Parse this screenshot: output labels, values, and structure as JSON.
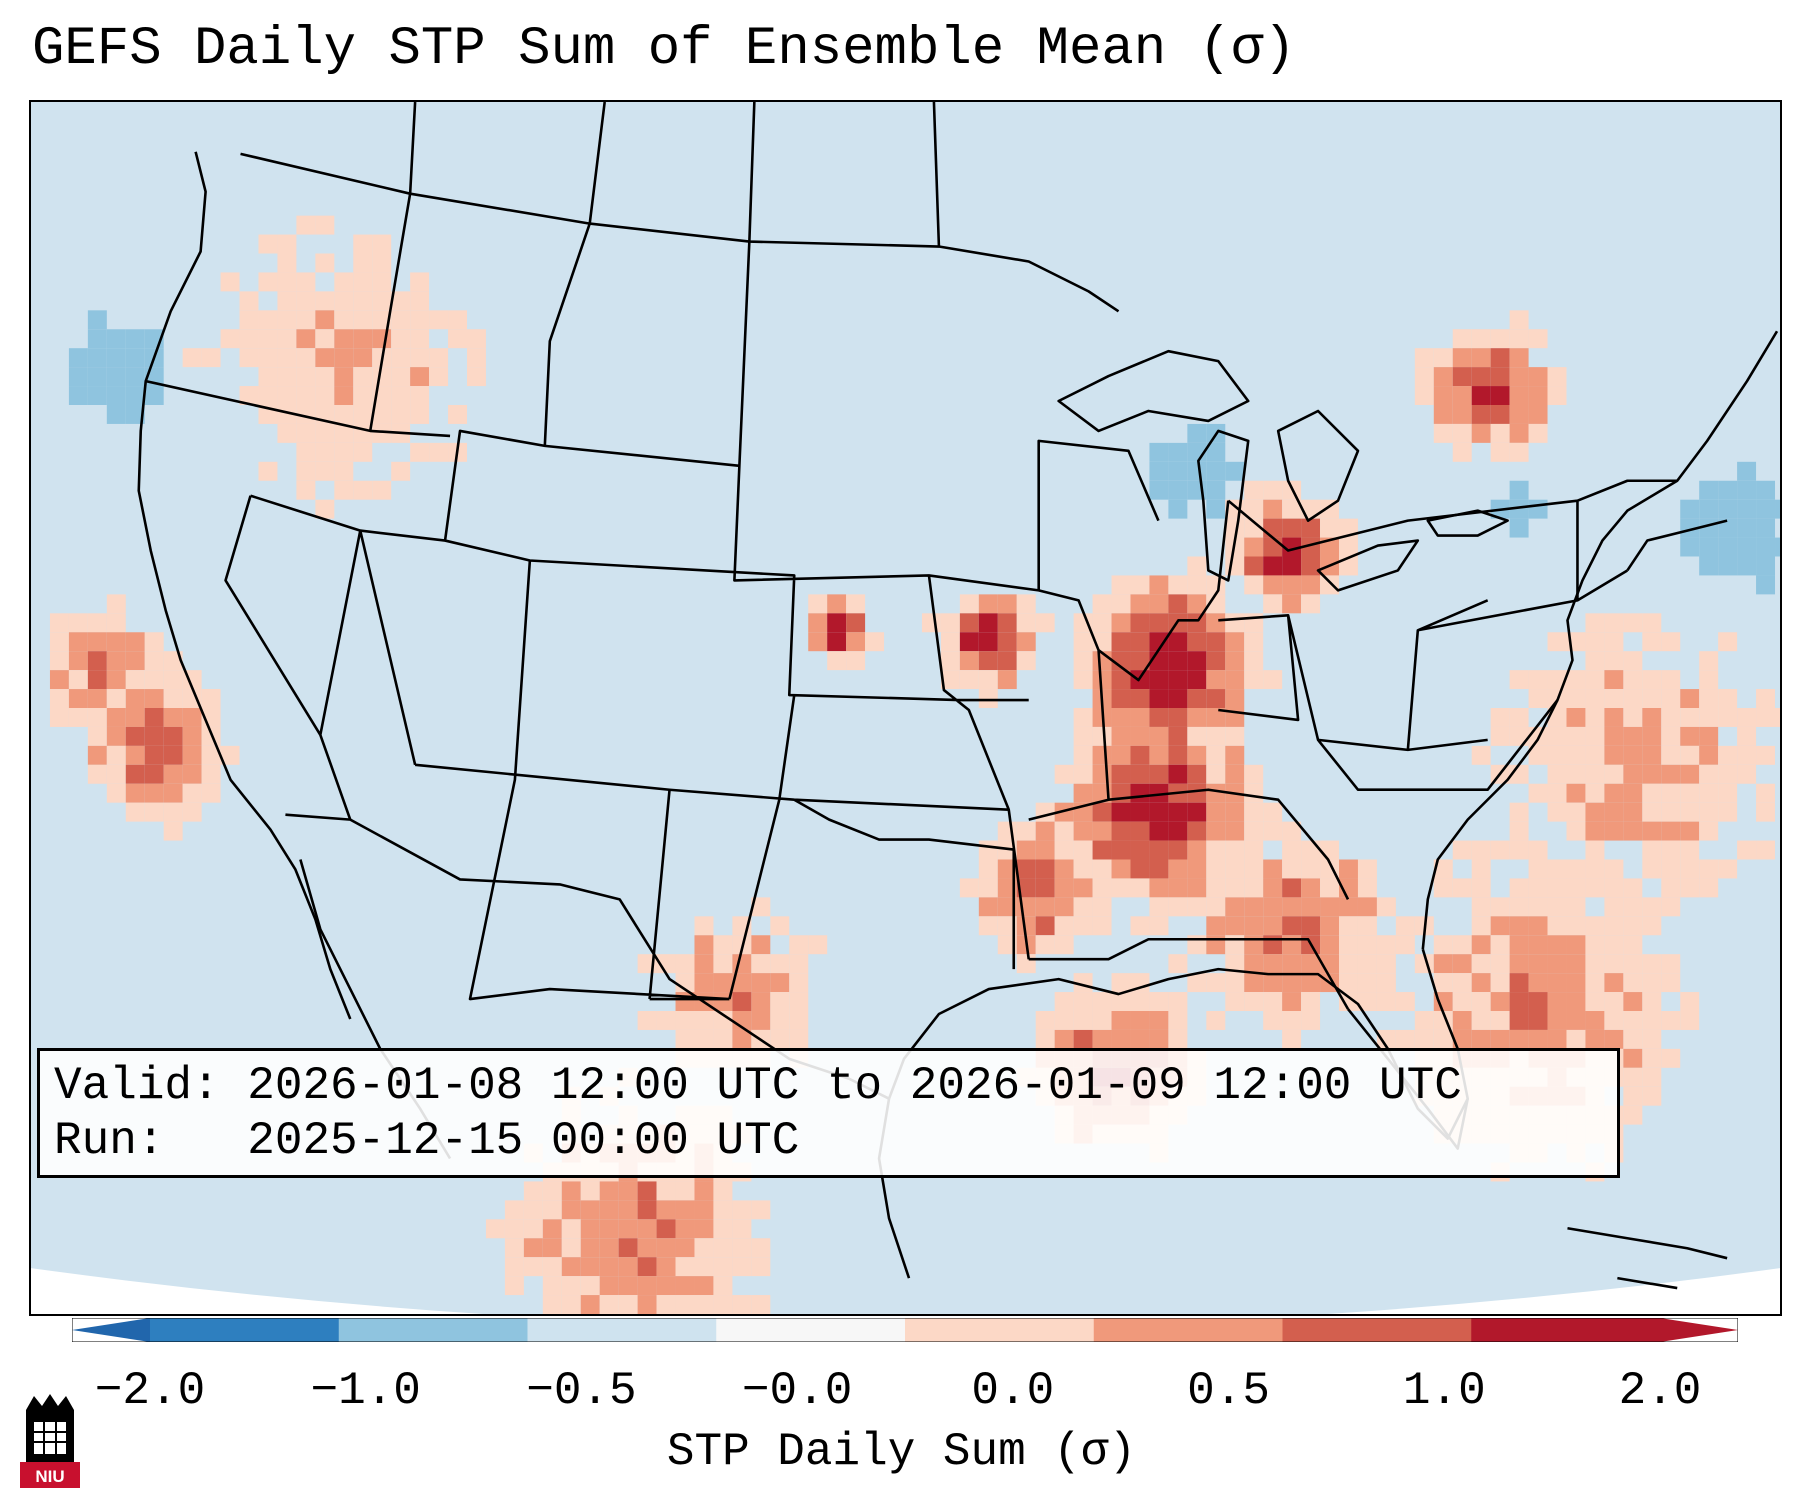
{
  "title": "GEFS Daily STP Sum of Ensemble Mean (σ)",
  "info": {
    "valid_line": "Valid: 2026-01-08 12:00 UTC to 2026-01-09 12:00 UTC",
    "run_line": "Run:   2025-12-15 00:00 UTC"
  },
  "colorbar": {
    "label": "STP Daily Sum (σ)",
    "ticks": [
      "−2.0",
      "−1.0",
      "−0.5",
      "−0.0",
      "0.0",
      "0.5",
      "1.0",
      "2.0"
    ],
    "segment_colors": [
      "#2e7fbf",
      "#8fc4df",
      "#cfe3ef",
      "#f7f7f7",
      "#fcd8c6",
      "#f0997b",
      "#d35f4e",
      "#b2182b"
    ],
    "extend_low_color": "#2166ac",
    "extend_high_color": "#b2182b"
  },
  "map": {
    "ocean_color": "#d0e3ef",
    "line_color": "#000000",
    "features": [
      "US state boundaries",
      "Canada and Mexico coastlines",
      "Great Lakes"
    ]
  },
  "logo": {
    "text": "NIU",
    "color": "#c8102e"
  }
}
